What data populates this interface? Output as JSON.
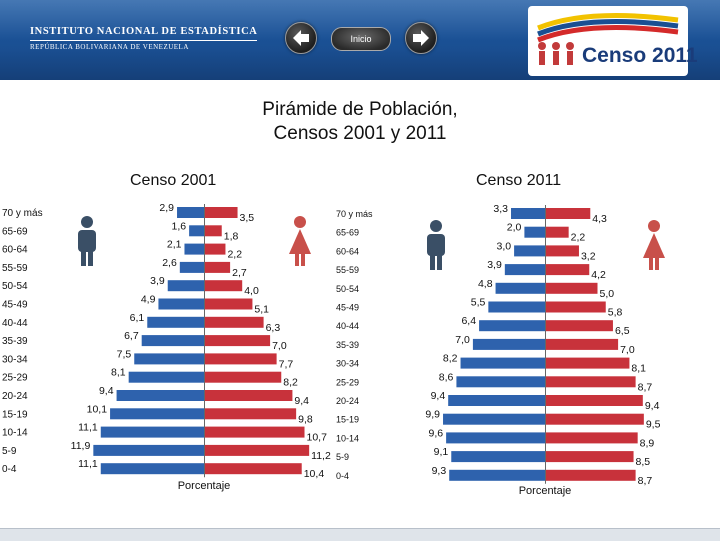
{
  "header": {
    "institute_line1": "INSTITUTO NACIONAL DE ESTADÍSTICA",
    "institute_line2": "REPÚBLICA BOLIVARIANA DE VENEZUELA",
    "inicio_label": "Inicio",
    "census_logo_text": "Censo 2011"
  },
  "title_line1": "Pirámide de Población,",
  "title_line2": "Censos 2001 y 2011",
  "colors": {
    "male": "#2e62ad",
    "female": "#c8323b",
    "header": "#1a4f92",
    "icon_male": "#3a4f66",
    "icon_female": "#c8504a"
  },
  "chart_data": [
    {
      "type": "bar",
      "title": "Censo 2001",
      "xlabel": "Porcentaje",
      "categories": [
        "70 y más",
        "65-69",
        "60-64",
        "55-59",
        "50-54",
        "45-49",
        "40-44",
        "35-39",
        "30-34",
        "25-29",
        "20-24",
        "15-19",
        "10-14",
        "5-9",
        "0-4"
      ],
      "series": [
        {
          "values": [
            2.9,
            1.6,
            2.1,
            2.6,
            3.9,
            4.9,
            6.1,
            6.7,
            7.5,
            8.1,
            9.4,
            10.1,
            11.1,
            11.9,
            11.1
          ],
          "labels": [
            "2,9",
            "1,6",
            "2,1",
            "2,6",
            "3,9",
            "4,9",
            "6,1",
            "6,7",
            "7,5",
            "8,1",
            "9,4",
            "10,1",
            "11,1",
            "11,9",
            "11,1"
          ]
        },
        {
          "values": [
            3.5,
            1.8,
            2.2,
            2.7,
            4.0,
            5.1,
            6.3,
            7.0,
            7.7,
            8.2,
            9.4,
            9.8,
            10.7,
            11.2,
            10.4
          ],
          "labels": [
            "3,5",
            "1,8",
            "2,2",
            "2,7",
            "4,0",
            "5,1",
            "6,3",
            "7,0",
            "7,7",
            "8,2",
            "9,4",
            "9,8",
            "10,7",
            "11,2",
            "10,4"
          ]
        }
      ]
    },
    {
      "type": "bar",
      "title": "Censo 2011",
      "xlabel": "Porcentaje",
      "categories": [
        "70 y más",
        "65-69",
        "60-64",
        "55-59",
        "50-54",
        "45-49",
        "40-44",
        "35-39",
        "30-34",
        "25-29",
        "20-24",
        "15-19",
        "10-14",
        "5-9",
        "0-4"
      ],
      "series": [
        {
          "values": [
            3.3,
            2.0,
            3.0,
            3.9,
            4.8,
            5.5,
            6.4,
            7.0,
            8.2,
            8.6,
            9.4,
            9.9,
            9.6,
            9.1,
            9.3
          ],
          "labels": [
            "3,3",
            "2,0",
            "3,0",
            "3,9",
            "4,8",
            "5,5",
            "6,4",
            "7,0",
            "8,2",
            "8,6",
            "9,4",
            "9,9",
            "9,6",
            "9,1",
            "9,3"
          ]
        },
        {
          "values": [
            4.3,
            2.2,
            3.2,
            4.2,
            5.0,
            5.8,
            6.5,
            7.0,
            8.1,
            8.7,
            9.4,
            9.5,
            8.9,
            8.5,
            8.7
          ],
          "labels": [
            "4,3",
            "2,2",
            "3,2",
            "4,2",
            "5,0",
            "5,8",
            "6,5",
            "7,0",
            "8,1",
            "8,7",
            "9,4",
            "9,5",
            "8,9",
            "8,5",
            "8,7"
          ]
        }
      ]
    }
  ]
}
